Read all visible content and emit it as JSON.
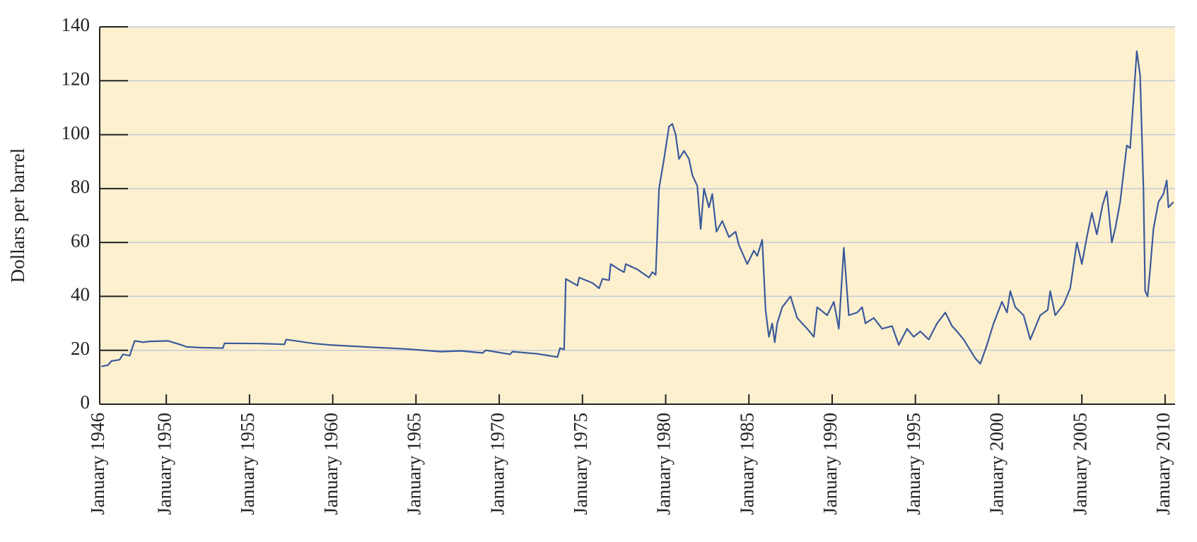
{
  "chart_data": {
    "type": "line",
    "y_label": "Dollars per barrel",
    "color": "#3b5a9a",
    "background": "#fdf0cf",
    "grid": true,
    "xlim": [
      1946,
      2010.6
    ],
    "ylim": [
      0,
      140
    ],
    "yticks": [
      0,
      20,
      40,
      60,
      80,
      100,
      120,
      140
    ],
    "xticks": [
      {
        "value": 1946,
        "label": "January 1946"
      },
      {
        "value": 1950,
        "label": "January 1950"
      },
      {
        "value": 1955,
        "label": "January 1955"
      },
      {
        "value": 1960,
        "label": "January 1960"
      },
      {
        "value": 1965,
        "label": "January 1965"
      },
      {
        "value": 1970,
        "label": "January 1970"
      },
      {
        "value": 1975,
        "label": "January 1975"
      },
      {
        "value": 1980,
        "label": "January 1980"
      },
      {
        "value": 1985,
        "label": "January 1985"
      },
      {
        "value": 1990,
        "label": "January 1990"
      },
      {
        "value": 1995,
        "label": "January 1995"
      },
      {
        "value": 2000,
        "label": "January 2000"
      },
      {
        "value": 2005,
        "label": "January 2005"
      },
      {
        "value": 2010,
        "label": "January 2010"
      }
    ],
    "x": [
      1946.1,
      1946.5,
      1946.7,
      1947.2,
      1947.4,
      1947.8,
      1948.1,
      1948.6,
      1949.0,
      1950.1,
      1950.9,
      1951.2,
      1952.0,
      1953.4,
      1953.5,
      1955.7,
      1957.1,
      1957.2,
      1958.9,
      1959.8,
      1962.1,
      1964.4,
      1966.5,
      1967.7,
      1969.0,
      1969.2,
      1970.65,
      1970.8,
      1972.3,
      1973.5,
      1973.65,
      1973.9,
      1974.0,
      1974.7,
      1974.8,
      1975.6,
      1976.0,
      1976.2,
      1976.6,
      1976.7,
      1977.2,
      1977.5,
      1977.6,
      1978.3,
      1979.0,
      1979.2,
      1979.4,
      1979.6,
      1979.9,
      1980.2,
      1980.4,
      1980.6,
      1980.8,
      1981.1,
      1981.4,
      1981.6,
      1981.9,
      1982.1,
      1982.3,
      1982.6,
      1982.8,
      1983.05,
      1983.4,
      1983.8,
      1984.2,
      1984.4,
      1984.9,
      1985.3,
      1985.5,
      1985.8,
      1986.0,
      1986.2,
      1986.4,
      1986.55,
      1986.7,
      1987.0,
      1987.5,
      1987.9,
      1988.5,
      1988.9,
      1989.1,
      1989.7,
      1990.1,
      1990.4,
      1990.7,
      1991.0,
      1991.5,
      1991.8,
      1992.0,
      1992.5,
      1993.0,
      1993.6,
      1994.0,
      1994.5,
      1994.9,
      1995.3,
      1995.8,
      1996.3,
      1996.8,
      1997.2,
      1997.5,
      1997.9,
      1998.4,
      1998.6,
      1998.9,
      1999.3,
      1999.7,
      2000.2,
      2000.5,
      2000.7,
      2001.0,
      2001.5,
      2001.9,
      2002.5,
      2002.95,
      2003.1,
      2003.4,
      2003.9,
      2004.3,
      2004.7,
      2005.0,
      2005.3,
      2005.6,
      2005.9,
      2006.25,
      2006.5,
      2006.8,
      2007.0,
      2007.3,
      2007.7,
      2007.9,
      2008.3,
      2008.5,
      2008.7,
      2008.8,
      2008.95,
      2009.1,
      2009.3,
      2009.6,
      2009.9,
      2010.1,
      2010.2,
      2010.5
    ],
    "values": [
      14,
      14.5,
      16,
      16.5,
      18.5,
      18,
      23.5,
      23,
      23.3,
      23.5,
      22,
      21.3,
      21,
      20.8,
      22.6,
      22.5,
      22.2,
      24,
      22.5,
      22,
      21.2,
      20.5,
      19.5,
      19.8,
      19,
      20,
      18.5,
      19.5,
      18.7,
      17.5,
      20.8,
      20.3,
      46.5,
      44,
      47,
      45,
      43,
      46.5,
      46,
      52,
      50,
      49,
      52,
      50,
      47,
      49,
      48,
      80,
      91,
      103,
      104,
      100,
      91,
      94,
      91,
      85,
      81,
      65,
      80,
      73,
      78,
      64,
      68,
      62,
      64,
      59,
      52,
      57,
      55,
      61,
      35,
      25,
      30,
      23,
      30,
      36,
      40,
      32,
      28,
      25,
      36,
      33,
      38,
      28,
      58,
      33,
      34,
      36,
      30,
      32,
      28,
      29,
      22,
      28,
      25,
      27,
      24,
      30,
      34,
      29,
      27,
      24,
      19,
      17,
      15,
      22,
      30,
      38,
      34,
      42,
      36,
      33,
      24,
      33,
      35,
      42,
      33,
      37,
      43,
      60,
      52,
      62,
      71,
      63,
      74,
      79,
      60,
      65,
      75,
      96,
      95,
      131,
      122,
      80,
      42,
      40,
      50,
      65,
      75,
      78,
      83,
      73,
      75
    ]
  }
}
